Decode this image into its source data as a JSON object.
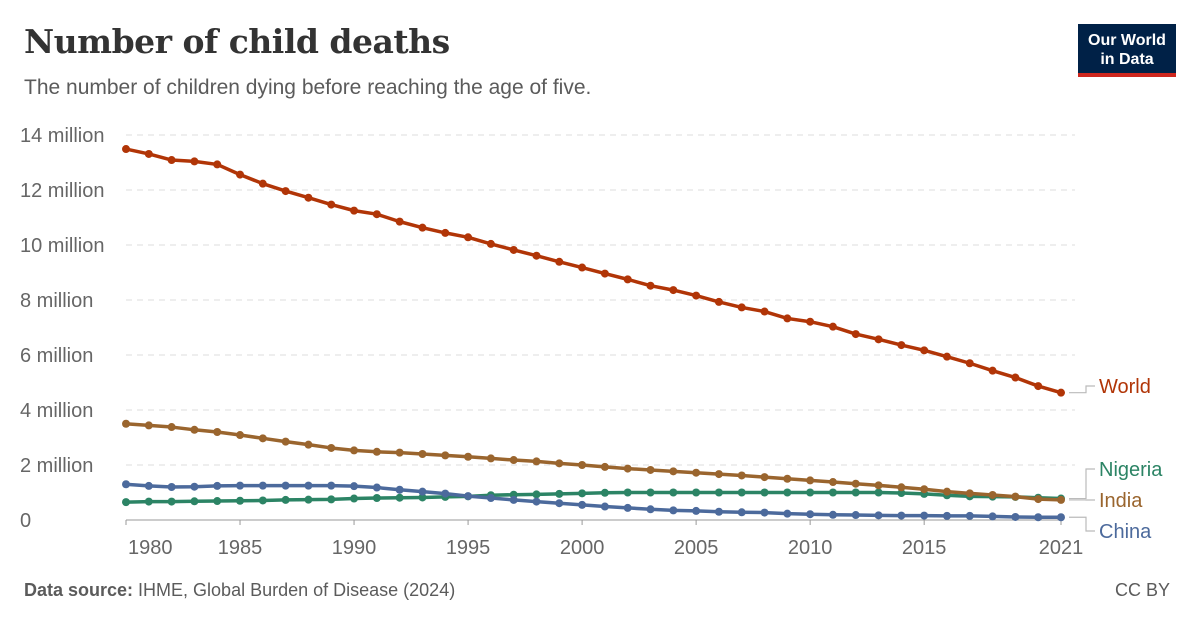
{
  "header": {
    "title": "Number of child deaths",
    "subtitle": "The number of children dying before reaching the age of five.",
    "logo_line1": "Our World",
    "logo_line2": "in Data"
  },
  "footer": {
    "source_label": "Data source:",
    "source_text": " IHME, Global Burden of Disease (2024)",
    "license": "CC BY"
  },
  "chart_data": {
    "type": "line",
    "title": "Number of child deaths",
    "ylim": [
      0,
      14000000
    ],
    "xlim": [
      1980,
      2021
    ],
    "grid": "horizontal-dashed",
    "legend_placement": "right-end-labels",
    "y_ticks": [
      0,
      2000000,
      4000000,
      6000000,
      8000000,
      10000000,
      12000000,
      14000000
    ],
    "y_tick_labels": [
      "0",
      "2 million",
      "4 million",
      "6 million",
      "8 million",
      "10 million",
      "12 million",
      "14 million"
    ],
    "x_ticks": [
      1980,
      1985,
      1990,
      1995,
      2000,
      2005,
      2010,
      2015,
      2021
    ],
    "x_tick_labels": [
      "1980",
      "1985",
      "1990",
      "1995",
      "2000",
      "2005",
      "2010",
      "2015",
      "2021"
    ],
    "x": [
      1980,
      1981,
      1982,
      1983,
      1984,
      1985,
      1986,
      1987,
      1988,
      1989,
      1990,
      1991,
      1992,
      1993,
      1994,
      1995,
      1996,
      1997,
      1998,
      1999,
      2000,
      2001,
      2002,
      2003,
      2004,
      2005,
      2006,
      2007,
      2008,
      2009,
      2010,
      2011,
      2012,
      2013,
      2014,
      2015,
      2016,
      2017,
      2018,
      2019,
      2020,
      2021
    ],
    "series": [
      {
        "name": "World",
        "color": "#b13507",
        "values": [
          13490000,
          13310000,
          13090000,
          13040000,
          12930000,
          12560000,
          12230000,
          11960000,
          11720000,
          11470000,
          11250000,
          11120000,
          10850000,
          10630000,
          10440000,
          10280000,
          10040000,
          9820000,
          9610000,
          9390000,
          9180000,
          8960000,
          8750000,
          8520000,
          8360000,
          8160000,
          7930000,
          7730000,
          7580000,
          7330000,
          7210000,
          7030000,
          6760000,
          6570000,
          6360000,
          6170000,
          5940000,
          5700000,
          5430000,
          5180000,
          4870000,
          4630000
        ]
      },
      {
        "name": "Nigeria",
        "color": "#2c8465",
        "values": [
          650000,
          670000,
          670000,
          680000,
          690000,
          700000,
          710000,
          730000,
          740000,
          750000,
          780000,
          800000,
          810000,
          820000,
          840000,
          860000,
          900000,
          920000,
          930000,
          950000,
          970000,
          990000,
          1000000,
          1000000,
          1000000,
          1000000,
          1000000,
          1000000,
          1000000,
          1000000,
          1000000,
          1000000,
          1000000,
          1000000,
          980000,
          950000,
          900000,
          860000,
          850000,
          840000,
          810000,
          780000
        ]
      },
      {
        "name": "India",
        "color": "#9a652e",
        "values": [
          3500000,
          3440000,
          3380000,
          3280000,
          3200000,
          3090000,
          2970000,
          2850000,
          2740000,
          2620000,
          2530000,
          2480000,
          2450000,
          2400000,
          2350000,
          2300000,
          2240000,
          2180000,
          2130000,
          2060000,
          2000000,
          1930000,
          1870000,
          1820000,
          1770000,
          1720000,
          1670000,
          1620000,
          1560000,
          1500000,
          1440000,
          1380000,
          1320000,
          1260000,
          1190000,
          1120000,
          1030000,
          970000,
          910000,
          850000,
          760000,
          730000
        ]
      },
      {
        "name": "China",
        "color": "#4c6a9c",
        "values": [
          1300000,
          1240000,
          1200000,
          1210000,
          1240000,
          1250000,
          1250000,
          1250000,
          1250000,
          1250000,
          1230000,
          1180000,
          1100000,
          1030000,
          960000,
          870000,
          800000,
          730000,
          670000,
          610000,
          550000,
          490000,
          440000,
          390000,
          350000,
          330000,
          300000,
          280000,
          270000,
          230000,
          210000,
          190000,
          180000,
          170000,
          160000,
          160000,
          150000,
          150000,
          130000,
          110000,
          100000,
          100000
        ]
      }
    ]
  }
}
